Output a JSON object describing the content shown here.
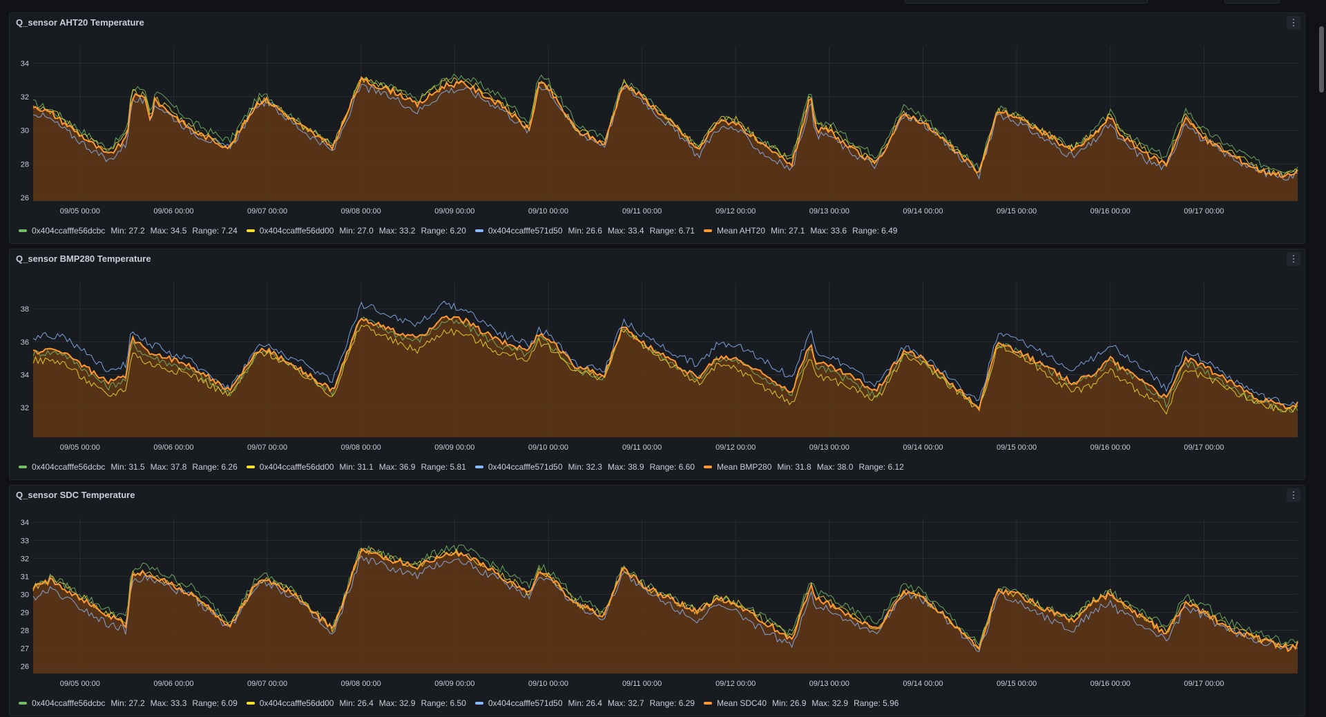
{
  "x_ticks": [
    "09/05 00:00",
    "09/06 00:00",
    "09/07 00:00",
    "09/08 00:00",
    "09/09 00:00",
    "09/10 00:00",
    "09/11 00:00",
    "09/12 00:00",
    "09/13 00:00",
    "09/14 00:00",
    "09/15 00:00",
    "09/16 00:00",
    "09/17 00:00"
  ],
  "colors": {
    "green": "#73bf69",
    "yellow": "#fade2a",
    "blue": "#8ab8ff",
    "orange": "#ff9830",
    "fill": "#5a3516",
    "grid": "#2a2d33",
    "axis_text": "#ccccdc"
  },
  "panel_menu_icon": "more-vertical-icon",
  "panels": [
    {
      "title": "Q_sensor AHT20 Temperature",
      "y_ticks": [
        "26",
        "28",
        "30",
        "32",
        "34"
      ],
      "legend": [
        {
          "name": "0x404ccafffe56dcbc",
          "min": "Min: 27.2",
          "max": "Max: 34.5",
          "range": "Range: 7.24"
        },
        {
          "name": "0x404ccafffe56dd00",
          "min": "Min: 27.0",
          "max": "Max: 33.2",
          "range": "Range: 6.20"
        },
        {
          "name": "0x404ccafffe571d50",
          "min": "Min: 26.6",
          "max": "Max: 33.4",
          "range": "Range: 6.71"
        },
        {
          "name": "Mean AHT20",
          "min": "Min: 27.1",
          "max": "Max: 33.6",
          "range": "Range: 6.49"
        }
      ]
    },
    {
      "title": "Q_sensor BMP280 Temperature",
      "y_ticks": [
        "32",
        "34",
        "36",
        "38"
      ],
      "legend": [
        {
          "name": "0x404ccafffe56dcbc",
          "min": "Min: 31.5",
          "max": "Max: 37.8",
          "range": "Range: 6.26"
        },
        {
          "name": "0x404ccafffe56dd00",
          "min": "Min: 31.1",
          "max": "Max: 36.9",
          "range": "Range: 5.81"
        },
        {
          "name": "0x404ccafffe571d50",
          "min": "Min: 32.3",
          "max": "Max: 38.9",
          "range": "Range: 6.60"
        },
        {
          "name": "Mean BMP280",
          "min": "Min: 31.8",
          "max": "Max: 38.0",
          "range": "Range: 6.12"
        }
      ]
    },
    {
      "title": "Q_sensor SDC Temperature",
      "y_ticks": [
        "26",
        "27",
        "28",
        "29",
        "30",
        "31",
        "32",
        "33",
        "34"
      ],
      "legend": [
        {
          "name": "0x404ccafffe56dcbc",
          "min": "Min: 27.2",
          "max": "Max: 33.3",
          "range": "Range: 6.09"
        },
        {
          "name": "0x404ccafffe56dd00",
          "min": "Min: 26.4",
          "max": "Max: 32.9",
          "range": "Range: 6.50"
        },
        {
          "name": "0x404ccafffe571d50",
          "min": "Min: 26.4",
          "max": "Max: 32.7",
          "range": "Range: 6.29"
        },
        {
          "name": "Mean SDC40",
          "min": "Min: 26.9",
          "max": "Max: 32.9",
          "range": "Range: 5.96"
        }
      ]
    }
  ],
  "chart_data": [
    {
      "type": "area",
      "title": "Q_sensor AHT20 Temperature",
      "ylim": [
        25.8,
        35
      ],
      "x_ticks": [
        "09/05 00:00",
        "09/06 00:00",
        "09/07 00:00",
        "09/08 00:00",
        "09/09 00:00",
        "09/10 00:00",
        "09/11 00:00",
        "09/12 00:00",
        "09/13 00:00",
        "09/14 00:00",
        "09/15 00:00",
        "09/16 00:00",
        "09/17 00:00"
      ],
      "x_days": [
        -0.5,
        13.0
      ],
      "mean_day": [
        [
          -0.5,
          31.5
        ],
        [
          -0.3,
          31.0
        ],
        [
          0.3,
          28.5
        ],
        [
          0.5,
          29.5
        ],
        [
          0.55,
          32.0
        ],
        [
          0.7,
          32.0
        ],
        [
          0.75,
          30.5
        ],
        [
          0.8,
          31.8
        ],
        [
          1.2,
          30.0
        ],
        [
          1.5,
          29.2
        ],
        [
          1.6,
          29.0
        ],
        [
          1.9,
          31.7
        ],
        [
          2.0,
          31.8
        ],
        [
          2.3,
          30.5
        ],
        [
          2.7,
          29.0
        ],
        [
          3.0,
          33.0
        ],
        [
          3.4,
          32.2
        ],
        [
          3.6,
          31.5
        ],
        [
          3.9,
          32.7
        ],
        [
          4.1,
          32.8
        ],
        [
          4.5,
          31.5
        ],
        [
          4.8,
          30.0
        ],
        [
          4.9,
          32.8
        ],
        [
          5.0,
          32.5
        ],
        [
          5.3,
          30.0
        ],
        [
          5.6,
          29.2
        ],
        [
          5.8,
          32.8
        ],
        [
          6.0,
          32.0
        ],
        [
          6.4,
          30.0
        ],
        [
          6.6,
          28.8
        ],
        [
          6.8,
          30.5
        ],
        [
          7.0,
          30.5
        ],
        [
          7.3,
          29.0
        ],
        [
          7.6,
          28.0
        ],
        [
          7.8,
          32.0
        ],
        [
          7.85,
          30.0
        ],
        [
          8.0,
          30.0
        ],
        [
          8.2,
          29.0
        ],
        [
          8.5,
          28.0
        ],
        [
          8.8,
          31.0
        ],
        [
          9.0,
          30.5
        ],
        [
          9.3,
          29.0
        ],
        [
          9.6,
          27.5
        ],
        [
          9.8,
          31.2
        ],
        [
          10.0,
          30.8
        ],
        [
          10.3,
          29.8
        ],
        [
          10.6,
          28.8
        ],
        [
          10.8,
          29.6
        ],
        [
          11.0,
          30.8
        ],
        [
          11.1,
          29.8
        ],
        [
          11.4,
          28.5
        ],
        [
          11.6,
          28.0
        ],
        [
          11.8,
          30.8
        ],
        [
          12.0,
          29.5
        ],
        [
          12.3,
          28.5
        ],
        [
          12.6,
          27.6
        ],
        [
          12.9,
          27.3
        ],
        [
          13.0,
          27.5
        ]
      ],
      "series": [
        {
          "name": "0x404ccafffe56dcbc",
          "offset": 0.5
        },
        {
          "name": "0x404ccafffe56dd00",
          "offset": 0.2
        },
        {
          "name": "0x404ccafffe571d50",
          "offset": -0.4
        },
        {
          "name": "Mean AHT20",
          "offset": 0
        }
      ]
    },
    {
      "type": "area",
      "title": "Q_sensor BMP280 Temperature",
      "ylim": [
        30.2,
        39.6
      ],
      "x_ticks": [
        "09/05 00:00",
        "09/06 00:00",
        "09/07 00:00",
        "09/08 00:00",
        "09/09 00:00",
        "09/10 00:00",
        "09/11 00:00",
        "09/12 00:00",
        "09/13 00:00",
        "09/14 00:00",
        "09/15 00:00",
        "09/16 00:00",
        "09/17 00:00"
      ],
      "x_days": [
        -0.5,
        13.0
      ],
      "mean_day": [
        [
          -0.5,
          35.4
        ],
        [
          -0.2,
          35.5
        ],
        [
          0.3,
          33.5
        ],
        [
          0.5,
          34.0
        ],
        [
          0.55,
          36.2
        ],
        [
          0.7,
          35.5
        ],
        [
          1.2,
          34.5
        ],
        [
          1.6,
          33.0
        ],
        [
          1.9,
          35.5
        ],
        [
          2.0,
          35.5
        ],
        [
          2.3,
          34.5
        ],
        [
          2.7,
          33.0
        ],
        [
          3.0,
          37.5
        ],
        [
          3.4,
          36.5
        ],
        [
          3.6,
          36.2
        ],
        [
          3.9,
          37.5
        ],
        [
          4.1,
          37.3
        ],
        [
          4.5,
          36.0
        ],
        [
          4.8,
          35.5
        ],
        [
          4.9,
          36.5
        ],
        [
          5.0,
          36.2
        ],
        [
          5.3,
          34.5
        ],
        [
          5.6,
          34.0
        ],
        [
          5.8,
          37.0
        ],
        [
          6.0,
          36.0
        ],
        [
          6.4,
          34.5
        ],
        [
          6.6,
          33.8
        ],
        [
          6.8,
          35.0
        ],
        [
          7.0,
          35.0
        ],
        [
          7.3,
          34.0
        ],
        [
          7.6,
          33.0
        ],
        [
          7.8,
          36.0
        ],
        [
          7.85,
          34.8
        ],
        [
          8.0,
          34.5
        ],
        [
          8.2,
          34.0
        ],
        [
          8.5,
          33.0
        ],
        [
          8.8,
          35.5
        ],
        [
          9.0,
          35.0
        ],
        [
          9.3,
          33.5
        ],
        [
          9.6,
          32.0
        ],
        [
          9.8,
          36.0
        ],
        [
          10.0,
          35.5
        ],
        [
          10.3,
          34.5
        ],
        [
          10.6,
          33.5
        ],
        [
          10.8,
          34.0
        ],
        [
          11.0,
          35.0
        ],
        [
          11.1,
          34.5
        ],
        [
          11.4,
          33.5
        ],
        [
          11.6,
          32.5
        ],
        [
          11.8,
          35.0
        ],
        [
          12.0,
          34.5
        ],
        [
          12.3,
          33.5
        ],
        [
          12.6,
          32.5
        ],
        [
          12.9,
          32.0
        ],
        [
          13.0,
          32.2
        ]
      ],
      "series": [
        {
          "name": "0x404ccafffe56dcbc",
          "offset": -0.3
        },
        {
          "name": "0x404ccafffe56dd00",
          "offset": -0.8
        },
        {
          "name": "0x404ccafffe571d50",
          "offset": 0.9
        },
        {
          "name": "Mean BMP280",
          "offset": 0
        }
      ]
    },
    {
      "type": "area",
      "title": "Q_sensor SDC Temperature",
      "ylim": [
        25.6,
        34.2
      ],
      "x_ticks": [
        "09/05 00:00",
        "09/06 00:00",
        "09/07 00:00",
        "09/08 00:00",
        "09/09 00:00",
        "09/10 00:00",
        "09/11 00:00",
        "09/12 00:00",
        "09/13 00:00",
        "09/14 00:00",
        "09/15 00:00",
        "09/16 00:00",
        "09/17 00:00"
      ],
      "x_days": [
        -0.5,
        13.0
      ],
      "mean_day": [
        [
          -0.5,
          30.3
        ],
        [
          -0.3,
          30.8
        ],
        [
          0.3,
          28.8
        ],
        [
          0.5,
          28.3
        ],
        [
          0.55,
          31.0
        ],
        [
          0.7,
          31.2
        ],
        [
          1.2,
          30.0
        ],
        [
          1.6,
          28.2
        ],
        [
          1.9,
          30.8
        ],
        [
          2.0,
          30.8
        ],
        [
          2.3,
          30.0
        ],
        [
          2.7,
          28.0
        ],
        [
          3.0,
          32.5
        ],
        [
          3.4,
          31.8
        ],
        [
          3.6,
          31.5
        ],
        [
          3.9,
          32.3
        ],
        [
          4.1,
          32.2
        ],
        [
          4.5,
          31.0
        ],
        [
          4.8,
          30.0
        ],
        [
          4.9,
          31.2
        ],
        [
          5.0,
          31.0
        ],
        [
          5.3,
          29.5
        ],
        [
          5.6,
          28.8
        ],
        [
          5.8,
          31.5
        ],
        [
          6.0,
          30.5
        ],
        [
          6.4,
          29.5
        ],
        [
          6.6,
          29.0
        ],
        [
          6.8,
          29.8
        ],
        [
          7.0,
          29.5
        ],
        [
          7.3,
          28.5
        ],
        [
          7.6,
          27.5
        ],
        [
          7.8,
          30.5
        ],
        [
          7.85,
          29.8
        ],
        [
          8.0,
          29.5
        ],
        [
          8.2,
          28.8
        ],
        [
          8.5,
          28.0
        ],
        [
          8.8,
          30.2
        ],
        [
          9.0,
          29.8
        ],
        [
          9.3,
          28.5
        ],
        [
          9.6,
          27.0
        ],
        [
          9.8,
          30.2
        ],
        [
          10.0,
          30.0
        ],
        [
          10.3,
          29.2
        ],
        [
          10.6,
          28.5
        ],
        [
          10.8,
          29.5
        ],
        [
          11.0,
          30.0
        ],
        [
          11.1,
          29.5
        ],
        [
          11.4,
          28.5
        ],
        [
          11.6,
          27.8
        ],
        [
          11.8,
          29.5
        ],
        [
          12.0,
          29.0
        ],
        [
          12.3,
          28.0
        ],
        [
          12.6,
          27.5
        ],
        [
          12.9,
          27.0
        ],
        [
          13.0,
          27.2
        ]
      ],
      "series": [
        {
          "name": "0x404ccafffe56dcbc",
          "offset": 0.4
        },
        {
          "name": "0x404ccafffe56dd00",
          "offset": 0.1
        },
        {
          "name": "0x404ccafffe571d50",
          "offset": -0.5
        },
        {
          "name": "Mean SDC40",
          "offset": 0
        }
      ]
    }
  ]
}
